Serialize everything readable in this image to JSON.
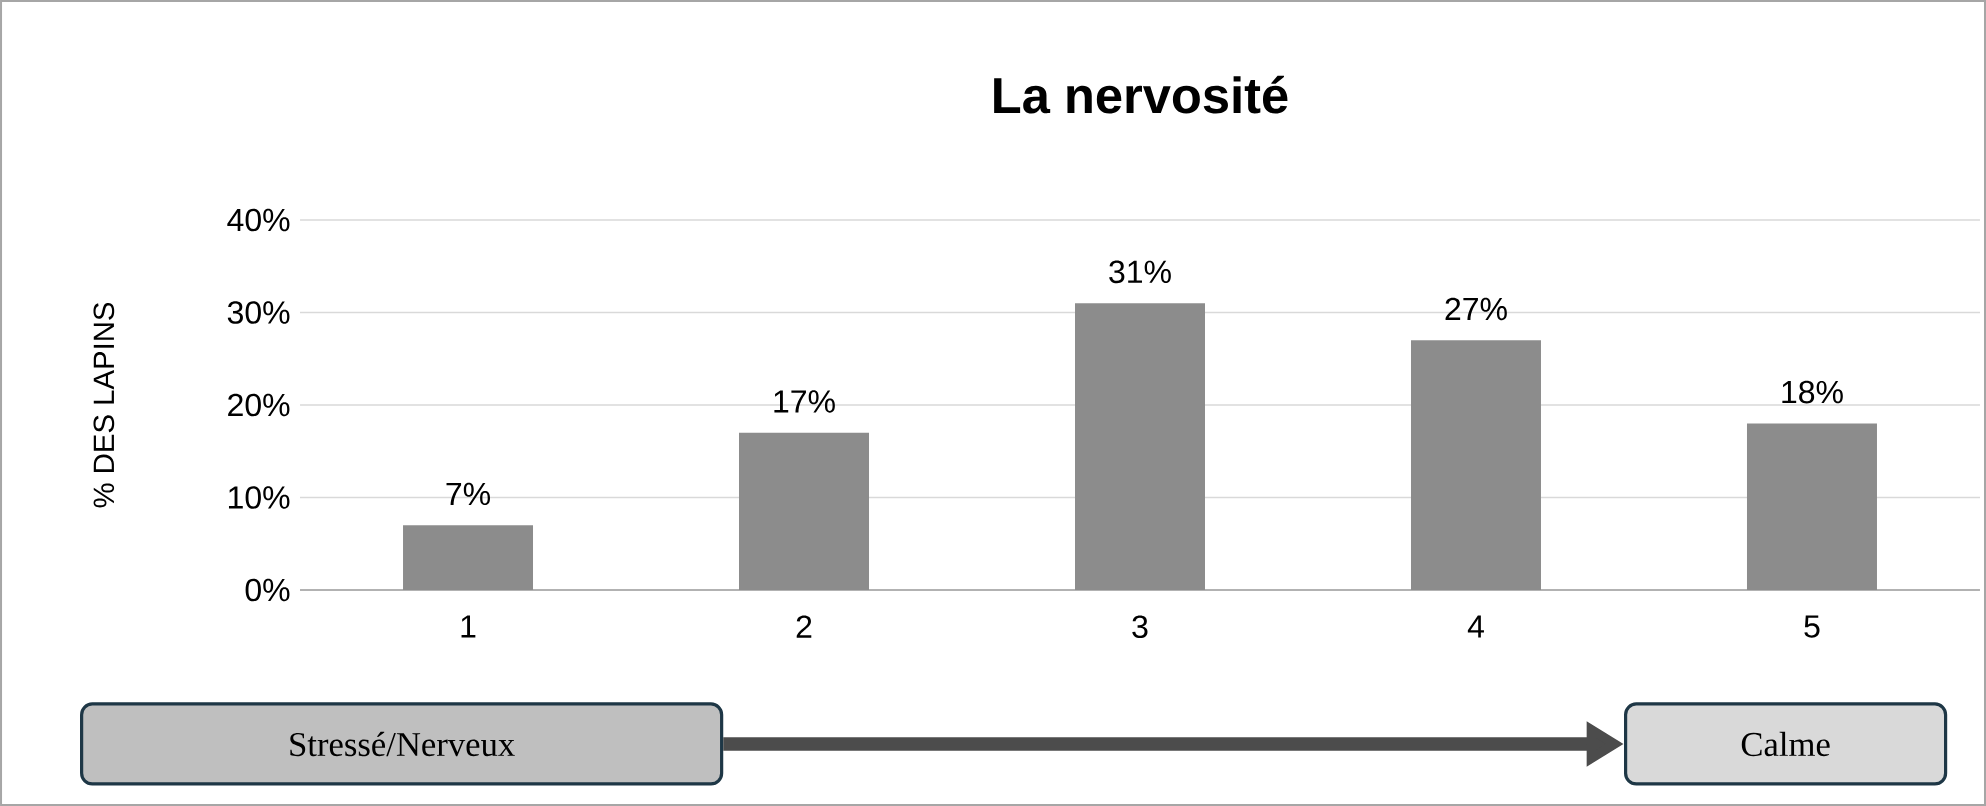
{
  "chart_data": {
    "type": "bar",
    "title": "La nervosité",
    "ylabel": "% DES LAPINS",
    "categories": [
      "1",
      "2",
      "3",
      "4",
      "5"
    ],
    "values": [
      7,
      17,
      31,
      27,
      18
    ],
    "value_labels": [
      "7%",
      "17%",
      "31%",
      "27%",
      "18%"
    ],
    "color": "#8c8c8c",
    "ylim": [
      0,
      40
    ],
    "yticks": [
      {
        "value": 0,
        "label": "0%"
      },
      {
        "value": 10,
        "label": "10%"
      },
      {
        "value": 20,
        "label": "20%"
      },
      {
        "value": 30,
        "label": "30%"
      },
      {
        "value": 40,
        "label": "40%"
      }
    ],
    "grid": "y",
    "annotations": [
      "Stressé/Nerveux",
      "Calme"
    ]
  }
}
